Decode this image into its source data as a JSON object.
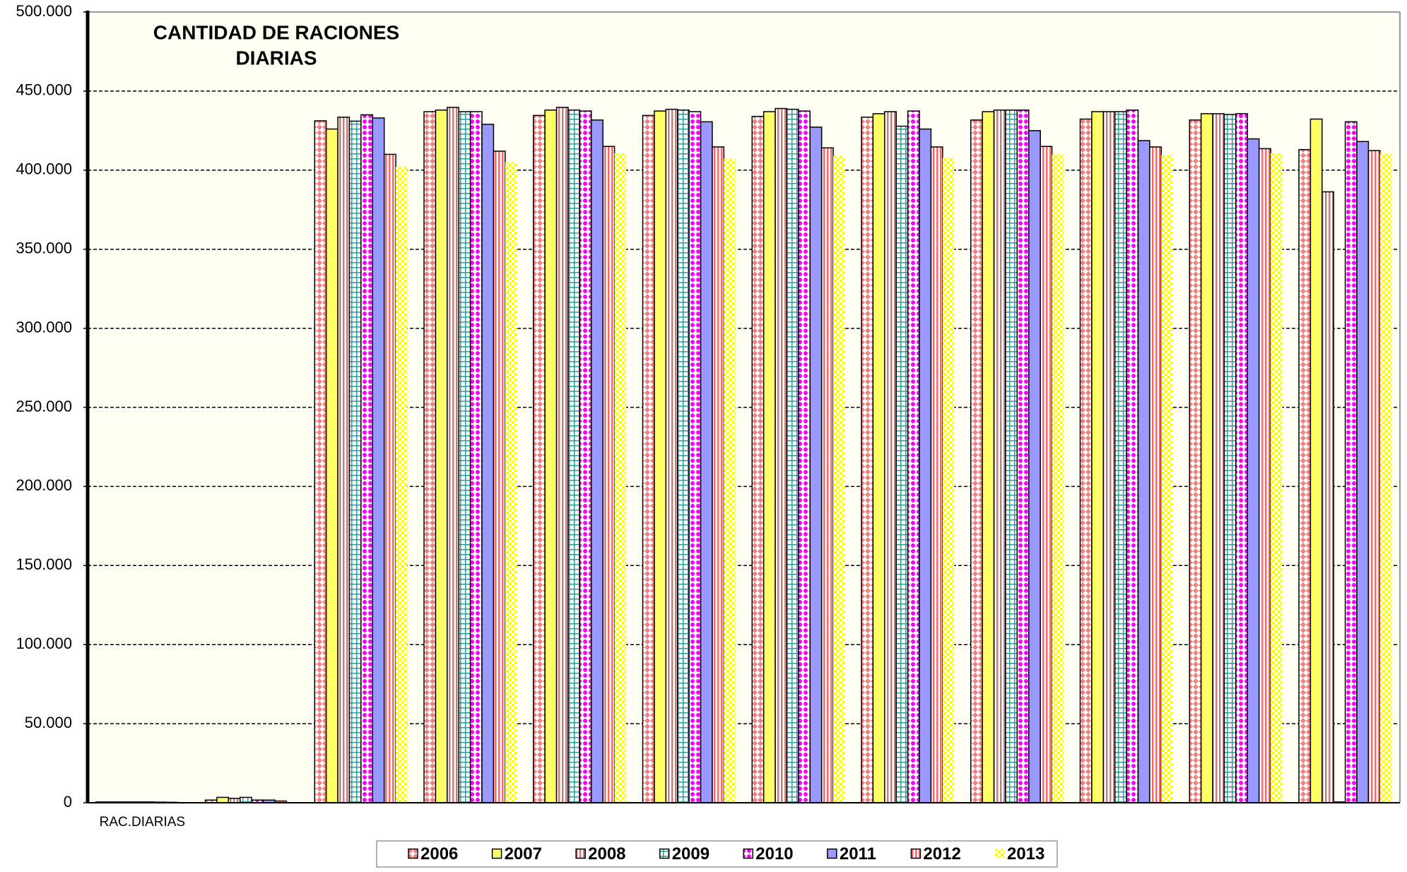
{
  "chart_data": {
    "type": "bar",
    "title": [
      "CANTIDAD DE RACIONES",
      "DIARIAS"
    ],
    "categories": [
      "RAC.DIARIAS",
      null,
      null,
      null,
      null,
      null,
      null,
      null,
      null,
      null,
      null,
      null
    ],
    "series": [
      {
        "name": "2006",
        "color": "#f08080",
        "values": [
          500,
          1700,
          431200,
          437000,
          434600,
          434600,
          434000,
          433500,
          431700,
          432300,
          431700,
          413000
        ]
      },
      {
        "name": "2007",
        "color": "#ffff66",
        "values": [
          500,
          3400,
          426000,
          438000,
          438000,
          437400,
          437000,
          435700,
          437000,
          437000,
          435700,
          432300
        ]
      },
      {
        "name": "2008",
        "color": "#c08080",
        "values": [
          500,
          2800,
          433500,
          439700,
          439700,
          438500,
          439000,
          437000,
          438000,
          437000,
          435700,
          386300
        ]
      },
      {
        "name": "2009",
        "color": "#339999",
        "values": [
          500,
          3400,
          431000,
          437000,
          438000,
          438000,
          438500,
          427800,
          438000,
          437000,
          435200,
          500
        ]
      },
      {
        "name": "2010",
        "color": "#ff00ff",
        "values": [
          500,
          1700,
          435000,
          437000,
          437400,
          437000,
          437400,
          437400,
          438000,
          438000,
          435700,
          430600
        ]
      },
      {
        "name": "2011",
        "color": "#9999ff",
        "values": [
          400,
          1700,
          433000,
          429000,
          431700,
          430600,
          427200,
          426000,
          425000,
          418700,
          419800,
          418100
        ]
      },
      {
        "name": "2012",
        "color": "#ff6666",
        "values": [
          300,
          1100,
          410000,
          412000,
          415000,
          414700,
          414100,
          414700,
          415000,
          414700,
          413600,
          412400
        ]
      },
      {
        "name": "2013",
        "color": "#ffff00",
        "values": [
          0,
          0,
          402000,
          405000,
          410700,
          407300,
          409000,
          407900,
          410100,
          409600,
          410700,
          410700
        ]
      }
    ],
    "ylim": [
      0,
      500000
    ],
    "yticks": [
      0,
      {
        "value": 50000,
        "label": "50.000"
      },
      {
        "value": 100000,
        "label": "100.000"
      },
      {
        "value": 150000,
        "label": "150.000"
      },
      {
        "value": 200000,
        "label": "200.000"
      },
      {
        "value": 250000,
        "label": "250.000"
      },
      {
        "value": 300000,
        "label": "300.000"
      },
      {
        "value": 350000,
        "label": "350.000"
      },
      {
        "value": 400000,
        "label": "400.000"
      },
      {
        "value": 450000,
        "label": "450.000"
      },
      {
        "value": 500000,
        "label": "500.000"
      }
    ],
    "grid": true,
    "legend": "bottom"
  }
}
